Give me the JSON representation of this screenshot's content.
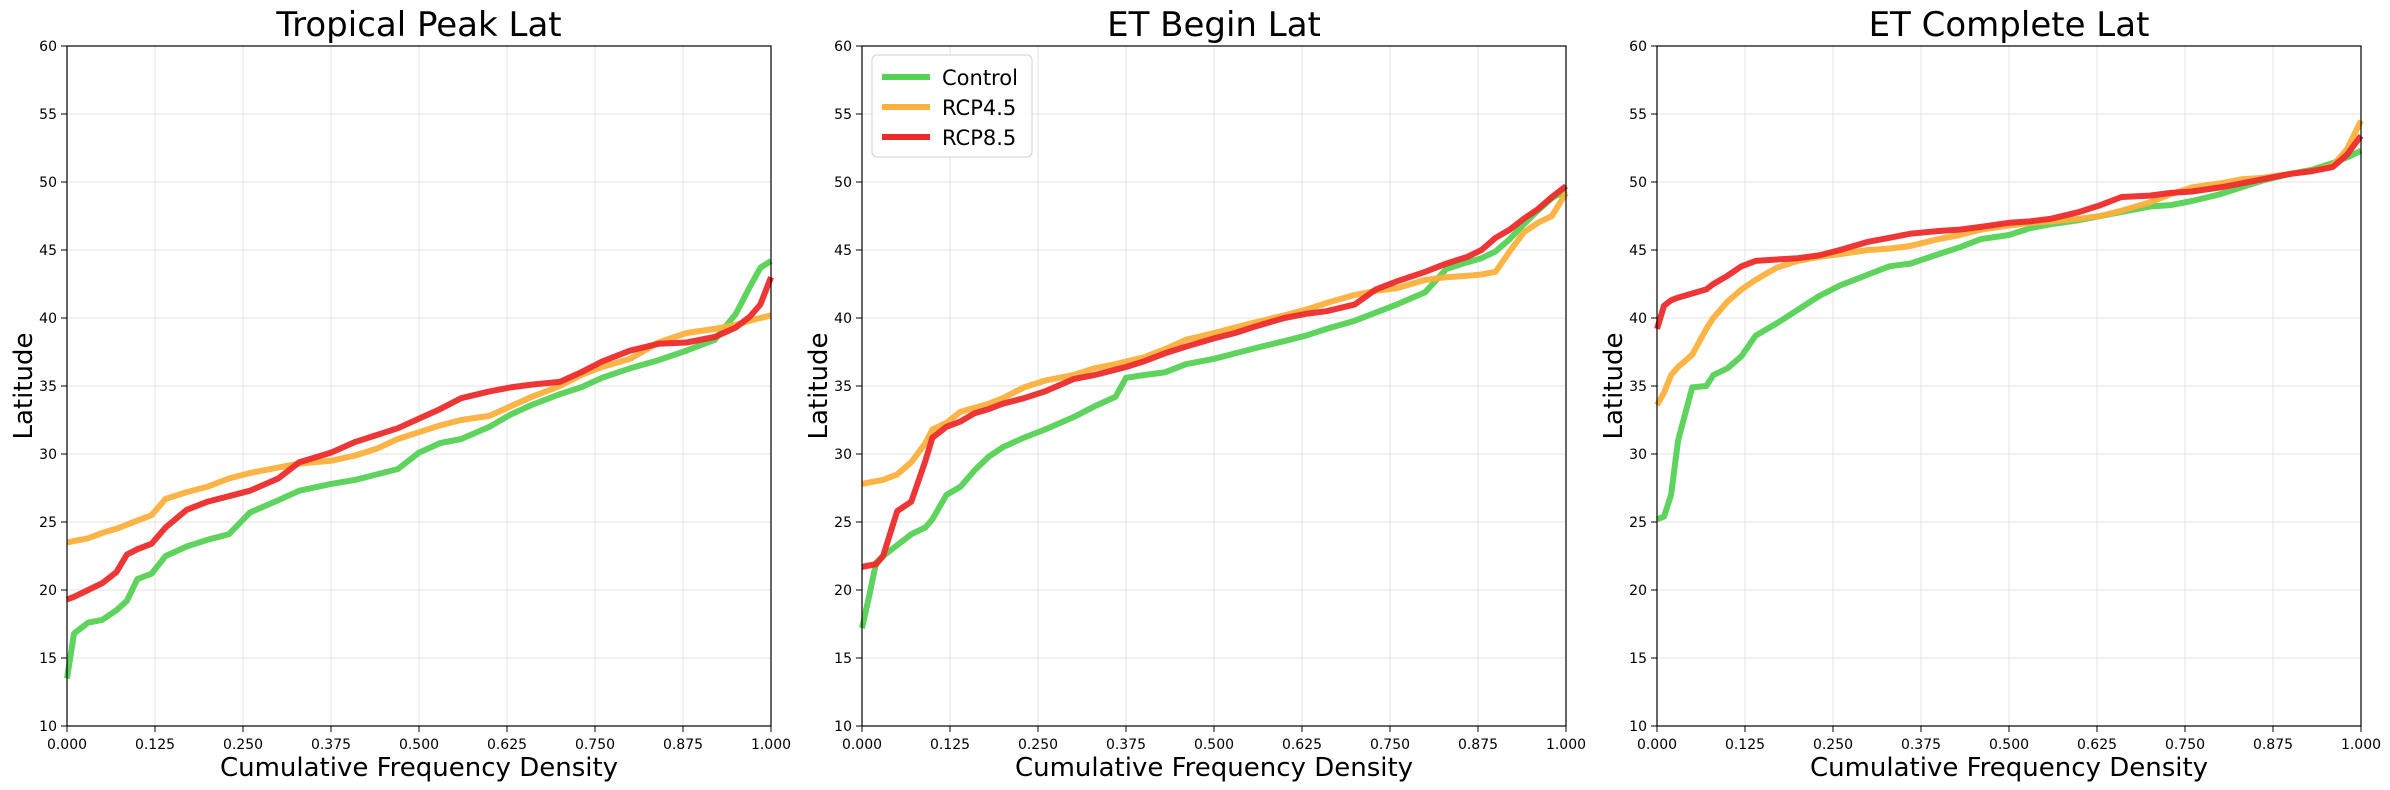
{
  "colors": {
    "Control": "#55d155",
    "RCP4.5": "#fbb03b",
    "RCP8.5": "#ee2b2b"
  },
  "chart_data": [
    {
      "type": "line",
      "title": "Tropical Peak Lat",
      "xlabel": "Cumulative Frequency Density",
      "ylabel": "Latitude",
      "xlim": [
        0,
        1
      ],
      "ylim": [
        10,
        60
      ],
      "xticks": [
        "0.000",
        "0.125",
        "0.250",
        "0.375",
        "0.500",
        "0.625",
        "0.750",
        "0.875",
        "1.000"
      ],
      "yticks": [
        "10",
        "15",
        "20",
        "25",
        "30",
        "35",
        "40",
        "45",
        "50",
        "55",
        "60"
      ],
      "grid": true,
      "legend": null,
      "x": [
        0,
        0.01,
        0.03,
        0.05,
        0.07,
        0.085,
        0.1,
        0.12,
        0.14,
        0.17,
        0.2,
        0.23,
        0.26,
        0.3,
        0.33,
        0.375,
        0.41,
        0.44,
        0.47,
        0.5,
        0.53,
        0.56,
        0.6,
        0.63,
        0.66,
        0.7,
        0.73,
        0.76,
        0.8,
        0.84,
        0.88,
        0.92,
        0.95,
        0.97,
        0.985,
        1.0
      ],
      "series": [
        {
          "name": "Control",
          "values": [
            13.5,
            16.8,
            17.6,
            17.8,
            18.5,
            19.2,
            20.8,
            21.2,
            22.5,
            23.2,
            23.7,
            24.1,
            25.7,
            26.6,
            27.3,
            27.8,
            28.1,
            28.5,
            28.9,
            30.1,
            30.8,
            31.1,
            32.0,
            32.9,
            33.6,
            34.4,
            34.9,
            35.6,
            36.3,
            36.9,
            37.6,
            38.4,
            40.3,
            42.3,
            43.7,
            44.2
          ]
        },
        {
          "name": "RCP4.5",
          "values": [
            23.5,
            23.6,
            23.8,
            24.2,
            24.5,
            24.8,
            25.1,
            25.5,
            26.7,
            27.2,
            27.6,
            28.2,
            28.6,
            29.0,
            29.3,
            29.5,
            29.9,
            30.4,
            31.1,
            31.6,
            32.1,
            32.5,
            32.8,
            33.5,
            34.2,
            35.0,
            35.8,
            36.4,
            37.0,
            38.2,
            38.9,
            39.2,
            39.5,
            39.8,
            40.0,
            40.2
          ]
        },
        {
          "name": "RCP8.5",
          "values": [
            19.3,
            19.5,
            20.0,
            20.5,
            21.3,
            22.6,
            23.0,
            23.4,
            24.6,
            25.9,
            26.5,
            26.9,
            27.3,
            28.2,
            29.4,
            30.1,
            30.9,
            31.4,
            31.9,
            32.6,
            33.3,
            34.1,
            34.6,
            34.9,
            35.1,
            35.3,
            36.0,
            36.8,
            37.6,
            38.1,
            38.2,
            38.6,
            39.3,
            40.1,
            41.0,
            43.0
          ]
        }
      ]
    },
    {
      "type": "line",
      "title": "ET Begin Lat",
      "xlabel": "Cumulative Frequency Density",
      "ylabel": "Latitude",
      "xlim": [
        0,
        1
      ],
      "ylim": [
        10,
        60
      ],
      "xticks": [
        "0.000",
        "0.125",
        "0.250",
        "0.375",
        "0.500",
        "0.625",
        "0.750",
        "0.875",
        "1.000"
      ],
      "yticks": [
        "10",
        "15",
        "20",
        "25",
        "30",
        "35",
        "40",
        "45",
        "50",
        "55",
        "60"
      ],
      "grid": true,
      "legend": "top-left",
      "legend_labels": [
        "Control",
        "RCP4.5",
        "RCP8.5"
      ],
      "x": [
        0,
        0.01,
        0.02,
        0.03,
        0.05,
        0.07,
        0.09,
        0.1,
        0.12,
        0.14,
        0.16,
        0.18,
        0.2,
        0.23,
        0.26,
        0.3,
        0.33,
        0.36,
        0.375,
        0.4,
        0.43,
        0.46,
        0.5,
        0.53,
        0.56,
        0.6,
        0.63,
        0.66,
        0.7,
        0.73,
        0.76,
        0.8,
        0.83,
        0.86,
        0.88,
        0.9,
        0.92,
        0.94,
        0.96,
        0.98,
        1.0
      ],
      "series": [
        {
          "name": "Control",
          "values": [
            17.2,
            19.5,
            22.0,
            22.5,
            23.3,
            24.1,
            24.6,
            25.2,
            27.0,
            27.6,
            28.8,
            29.8,
            30.5,
            31.2,
            31.8,
            32.7,
            33.5,
            34.2,
            35.6,
            35.8,
            36.0,
            36.6,
            37.0,
            37.4,
            37.8,
            38.3,
            38.7,
            39.2,
            39.8,
            40.4,
            41.0,
            41.9,
            43.6,
            44.1,
            44.4,
            44.9,
            45.8,
            46.9,
            47.9,
            48.8,
            49.4
          ]
        },
        {
          "name": "RCP4.5",
          "values": [
            27.8,
            27.9,
            28.0,
            28.1,
            28.5,
            29.4,
            30.8,
            31.8,
            32.3,
            33.1,
            33.4,
            33.7,
            34.1,
            34.9,
            35.4,
            35.8,
            36.3,
            36.6,
            36.8,
            37.1,
            37.7,
            38.4,
            38.9,
            39.3,
            39.7,
            40.2,
            40.6,
            41.1,
            41.7,
            42.0,
            42.2,
            42.8,
            43.0,
            43.1,
            43.2,
            43.4,
            44.9,
            46.3,
            47.0,
            47.5,
            49.2
          ]
        },
        {
          "name": "RCP8.5",
          "values": [
            21.7,
            21.8,
            21.9,
            22.5,
            25.8,
            26.5,
            29.5,
            31.2,
            32.0,
            32.4,
            33.0,
            33.3,
            33.7,
            34.1,
            34.6,
            35.5,
            35.8,
            36.2,
            36.4,
            36.8,
            37.4,
            37.9,
            38.5,
            38.9,
            39.4,
            40.0,
            40.3,
            40.5,
            41.0,
            42.1,
            42.7,
            43.4,
            44.0,
            44.5,
            45.0,
            45.9,
            46.5,
            47.3,
            48.0,
            48.9,
            49.7
          ]
        }
      ]
    },
    {
      "type": "line",
      "title": "ET Complete Lat",
      "xlabel": "Cumulative Frequency Density",
      "ylabel": "Latitude",
      "xlim": [
        0,
        1
      ],
      "ylim": [
        10,
        60
      ],
      "xticks": [
        "0.000",
        "0.125",
        "0.250",
        "0.375",
        "0.500",
        "0.625",
        "0.750",
        "0.875",
        "1.000"
      ],
      "yticks": [
        "10",
        "15",
        "20",
        "25",
        "30",
        "35",
        "40",
        "45",
        "50",
        "55",
        "60"
      ],
      "grid": true,
      "legend": null,
      "x": [
        0,
        0.01,
        0.02,
        0.03,
        0.05,
        0.07,
        0.08,
        0.1,
        0.12,
        0.14,
        0.17,
        0.2,
        0.23,
        0.26,
        0.3,
        0.33,
        0.36,
        0.4,
        0.43,
        0.46,
        0.5,
        0.53,
        0.56,
        0.6,
        0.63,
        0.66,
        0.7,
        0.73,
        0.76,
        0.8,
        0.83,
        0.86,
        0.9,
        0.93,
        0.96,
        0.98,
        1.0
      ],
      "series": [
        {
          "name": "Control",
          "values": [
            25.2,
            25.4,
            27.0,
            31.0,
            34.9,
            35.0,
            35.8,
            36.3,
            37.2,
            38.7,
            39.6,
            40.6,
            41.6,
            42.4,
            43.2,
            43.8,
            44.0,
            44.7,
            45.2,
            45.8,
            46.1,
            46.6,
            46.9,
            47.2,
            47.5,
            47.8,
            48.2,
            48.3,
            48.6,
            49.1,
            49.6,
            50.1,
            50.6,
            50.9,
            51.4,
            51.8,
            52.3
          ]
        },
        {
          "name": "RCP4.5",
          "values": [
            33.6,
            34.5,
            35.8,
            36.4,
            37.3,
            39.2,
            40.0,
            41.2,
            42.1,
            42.8,
            43.7,
            44.2,
            44.5,
            44.7,
            45.0,
            45.1,
            45.3,
            45.8,
            46.1,
            46.5,
            46.8,
            47.0,
            47.1,
            47.3,
            47.5,
            47.9,
            48.5,
            49.1,
            49.6,
            49.9,
            50.2,
            50.3,
            50.6,
            50.8,
            51.2,
            52.4,
            54.5
          ]
        },
        {
          "name": "RCP8.5",
          "values": [
            39.2,
            40.9,
            41.3,
            41.5,
            41.8,
            42.1,
            42.5,
            43.1,
            43.8,
            44.2,
            44.3,
            44.4,
            44.6,
            45.0,
            45.6,
            45.9,
            46.2,
            46.4,
            46.5,
            46.7,
            47.0,
            47.1,
            47.3,
            47.8,
            48.3,
            48.9,
            49.0,
            49.2,
            49.3,
            49.6,
            49.9,
            50.2,
            50.6,
            50.8,
            51.1,
            52.0,
            53.4
          ]
        }
      ]
    }
  ]
}
